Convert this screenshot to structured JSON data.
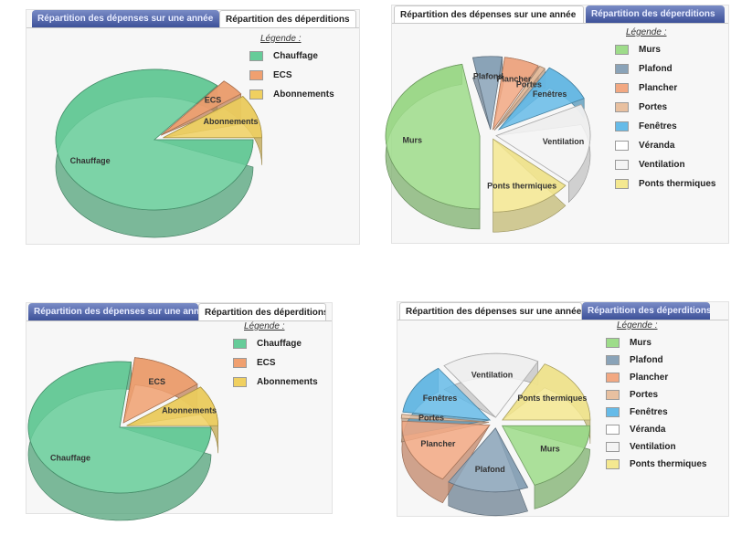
{
  "charts": [
    {
      "id": "tl",
      "tabs": [
        {
          "label": "Répartition des dépenses sur une année",
          "active": false
        },
        {
          "label": "Répartition des déperditions",
          "active": true
        }
      ],
      "legend_title": "Légende :",
      "slice_labels": [
        {
          "text": "Chauffage"
        },
        {
          "text": "ECS"
        },
        {
          "text": "Abonnements"
        }
      ],
      "legend": [
        {
          "label": "Chauffage",
          "color": "#66cc99"
        },
        {
          "label": "ECS",
          "color": "#f0a070"
        },
        {
          "label": "Abonnements",
          "color": "#f0d060"
        }
      ]
    },
    {
      "id": "tr",
      "tabs": [
        {
          "label": "Répartition des dépenses sur une année",
          "active": true
        },
        {
          "label": "Répartition des déperditions",
          "active": false
        }
      ],
      "legend_title": "Légende :",
      "slice_labels": [
        {
          "text": "Murs"
        },
        {
          "text": "Plafond"
        },
        {
          "text": "Plancher"
        },
        {
          "text": "Portes"
        },
        {
          "text": "Fenêtres"
        },
        {
          "text": "Ventilation"
        },
        {
          "text": "Ponts thermiques"
        }
      ],
      "legend": [
        {
          "label": "Murs",
          "color": "#9edc8a"
        },
        {
          "label": "Plafond",
          "color": "#8aa3b8"
        },
        {
          "label": "Plancher",
          "color": "#f2a882"
        },
        {
          "label": "Portes",
          "color": "#e8c0a0"
        },
        {
          "label": "Fenêtres",
          "color": "#66bbe8"
        },
        {
          "label": "Véranda",
          "color": "#ffffff"
        },
        {
          "label": "Ventilation",
          "color": "#f4f4f4"
        },
        {
          "label": "Ponts thermiques",
          "color": "#f4e890"
        }
      ]
    },
    {
      "id": "bl",
      "tabs": [
        {
          "label": "Répartition des dépenses sur une année",
          "active": false
        },
        {
          "label": "Répartition des déperditions",
          "active": true
        }
      ],
      "legend_title": "Légende :",
      "slice_labels": [
        {
          "text": "Chauffage"
        },
        {
          "text": "ECS"
        },
        {
          "text": "Abonnements"
        }
      ],
      "legend": [
        {
          "label": "Chauffage",
          "color": "#66cc99"
        },
        {
          "label": "ECS",
          "color": "#f0a070"
        },
        {
          "label": "Abonnements",
          "color": "#f0d060"
        }
      ]
    },
    {
      "id": "br",
      "tabs": [
        {
          "label": "Répartition des dépenses sur une année",
          "active": true
        },
        {
          "label": "Répartition des déperditions",
          "active": false
        }
      ],
      "legend_title": "Légende :",
      "slice_labels": [
        {
          "text": "Murs"
        },
        {
          "text": "Plafond"
        },
        {
          "text": "Plancher"
        },
        {
          "text": "Portes"
        },
        {
          "text": "Fenêtres"
        },
        {
          "text": "Ventilation"
        },
        {
          "text": "Ponts thermiques"
        }
      ],
      "legend": [
        {
          "label": "Murs",
          "color": "#9edc8a"
        },
        {
          "label": "Plafond",
          "color": "#8aa3b8"
        },
        {
          "label": "Plancher",
          "color": "#f2a882"
        },
        {
          "label": "Portes",
          "color": "#e8c0a0"
        },
        {
          "label": "Fenêtres",
          "color": "#66bbe8"
        },
        {
          "label": "Véranda",
          "color": "#ffffff"
        },
        {
          "label": "Ventilation",
          "color": "#f4f4f4"
        },
        {
          "label": "Ponts thermiques",
          "color": "#f4e890"
        }
      ]
    }
  ],
  "chart_data": [
    {
      "type": "pie",
      "title": "",
      "slices": [
        {
          "name": "Chauffage",
          "value": 86,
          "color": "#66cc99"
        },
        {
          "name": "ECS",
          "value": 4,
          "color": "#f0a070"
        },
        {
          "name": "Abonnements",
          "value": 10,
          "color": "#f0d060"
        }
      ]
    },
    {
      "type": "pie",
      "title": "",
      "slices": [
        {
          "name": "Murs",
          "value": 47,
          "color": "#9edc8a"
        },
        {
          "name": "Plafond",
          "value": 5,
          "color": "#8aa3b8"
        },
        {
          "name": "Plancher",
          "value": 6,
          "color": "#f2a882"
        },
        {
          "name": "Portes",
          "value": 1,
          "color": "#e8c0a0"
        },
        {
          "name": "Fenêtres",
          "value": 9,
          "color": "#66bbe8"
        },
        {
          "name": "Véranda",
          "value": 0,
          "color": "#ffffff"
        },
        {
          "name": "Ventilation",
          "value": 18,
          "color": "#f4f4f4"
        },
        {
          "name": "Ponts thermiques",
          "value": 14,
          "color": "#f4e890"
        }
      ]
    },
    {
      "type": "pie",
      "title": "",
      "slices": [
        {
          "name": "Chauffage",
          "value": 77,
          "color": "#66cc99"
        },
        {
          "name": "ECS",
          "value": 13,
          "color": "#f0a070"
        },
        {
          "name": "Abonnements",
          "value": 10,
          "color": "#f0d060"
        }
      ]
    },
    {
      "type": "pie",
      "title": "",
      "slices": [
        {
          "name": "Murs",
          "value": 19,
          "color": "#9edc8a"
        },
        {
          "name": "Plafond",
          "value": 15,
          "color": "#8aa3b8"
        },
        {
          "name": "Plancher",
          "value": 17,
          "color": "#f2a882"
        },
        {
          "name": "Portes",
          "value": 1,
          "color": "#e8c0a0"
        },
        {
          "name": "Fenêtres",
          "value": 13,
          "color": "#66bbe8"
        },
        {
          "name": "Véranda",
          "value": 0,
          "color": "#ffffff"
        },
        {
          "name": "Ventilation",
          "value": 18,
          "color": "#f4f4f4"
        },
        {
          "name": "Ponts thermiques",
          "value": 17,
          "color": "#f4e890"
        }
      ]
    }
  ]
}
